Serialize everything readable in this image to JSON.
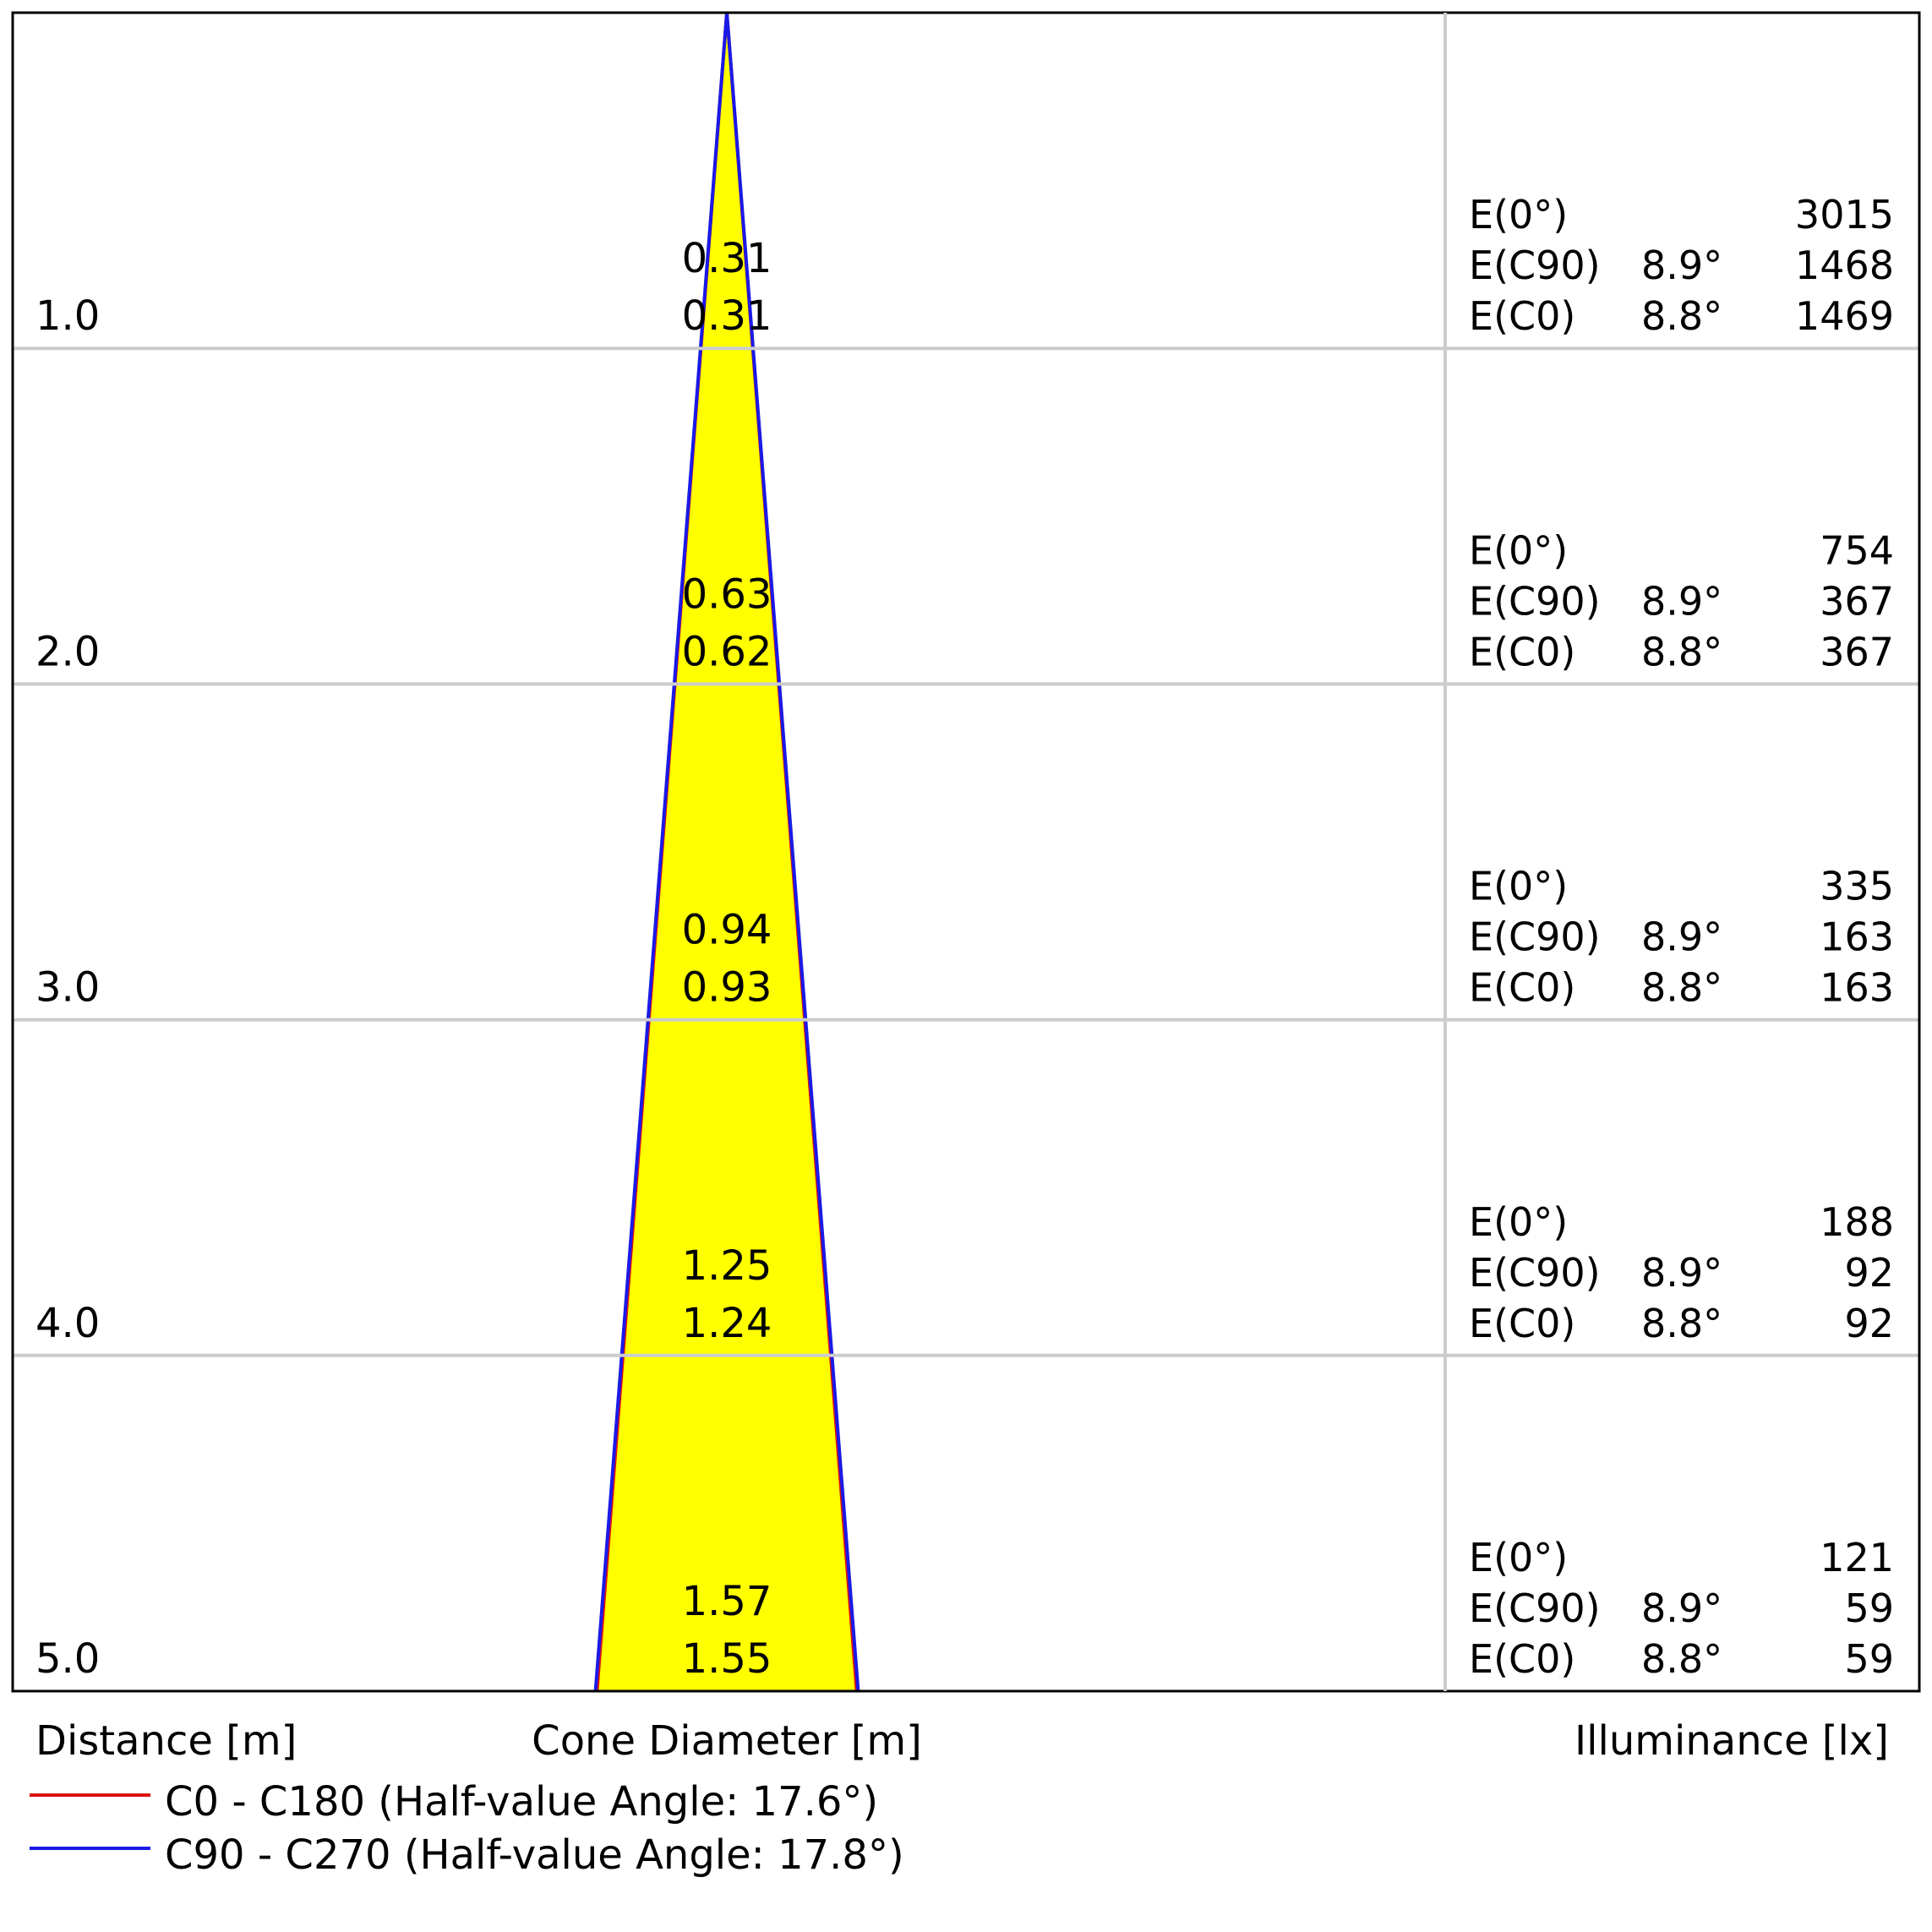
{
  "chart_data": {
    "type": "area",
    "title": "",
    "series": [
      {
        "name": "C0 - C180 (Half-value Angle: 17.6°)",
        "half_value_angle": 17.6,
        "color": "#e01010"
      },
      {
        "name": "C90 - C270 (Half-value Angle: 17.8°)",
        "half_value_angle": 17.8,
        "color": "#1a1ae6"
      }
    ],
    "fill_color": "#ffff00",
    "grid_color": "#cccccc",
    "axis_labels": {
      "distance": "Distance [m]",
      "cone": "Cone Diameter [m]",
      "illuminance": "Illuminance [lx]"
    },
    "ylim": [
      0,
      5
    ],
    "rows": [
      {
        "distance": "1.0",
        "d": 1.0,
        "diam_c90": "0.31",
        "diam_c0": "0.31",
        "ill": [
          {
            "label": "E(0°)",
            "angle": "",
            "value": "3015"
          },
          {
            "label": "E(C90)",
            "angle": "8.9°",
            "value": "1468"
          },
          {
            "label": "E(C0)",
            "angle": "8.8°",
            "value": "1469"
          }
        ]
      },
      {
        "distance": "2.0",
        "d": 2.0,
        "diam_c90": "0.63",
        "diam_c0": "0.62",
        "ill": [
          {
            "label": "E(0°)",
            "angle": "",
            "value": "754"
          },
          {
            "label": "E(C90)",
            "angle": "8.9°",
            "value": "367"
          },
          {
            "label": "E(C0)",
            "angle": "8.8°",
            "value": "367"
          }
        ]
      },
      {
        "distance": "3.0",
        "d": 3.0,
        "diam_c90": "0.94",
        "diam_c0": "0.93",
        "ill": [
          {
            "label": "E(0°)",
            "angle": "",
            "value": "335"
          },
          {
            "label": "E(C90)",
            "angle": "8.9°",
            "value": "163"
          },
          {
            "label": "E(C0)",
            "angle": "8.8°",
            "value": "163"
          }
        ]
      },
      {
        "distance": "4.0",
        "d": 4.0,
        "diam_c90": "1.25",
        "diam_c0": "1.24",
        "ill": [
          {
            "label": "E(0°)",
            "angle": "",
            "value": "188"
          },
          {
            "label": "E(C90)",
            "angle": "8.9°",
            "value": "92"
          },
          {
            "label": "E(C0)",
            "angle": "8.8°",
            "value": "92"
          }
        ]
      },
      {
        "distance": "5.0",
        "d": 5.0,
        "diam_c90": "1.57",
        "diam_c0": "1.55",
        "ill": [
          {
            "label": "E(0°)",
            "angle": "",
            "value": "121"
          },
          {
            "label": "E(C90)",
            "angle": "8.9°",
            "value": "59"
          },
          {
            "label": "E(C0)",
            "angle": "8.8°",
            "value": "59"
          }
        ]
      }
    ]
  }
}
